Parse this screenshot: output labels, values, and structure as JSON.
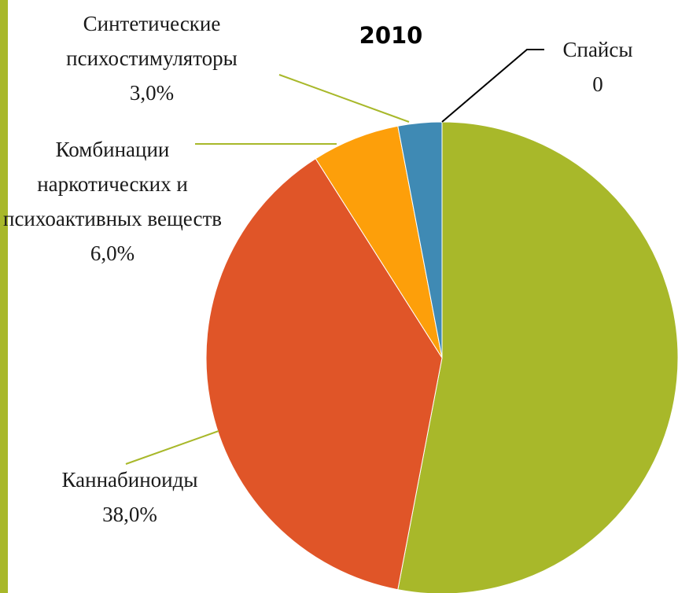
{
  "chart_data": {
    "type": "pie",
    "title": "2010",
    "categories": [
      null,
      "Каннабиноиды",
      "Комбинации наркотических и психоактивных веществ",
      "Синтетические психостимуляторы",
      "Спайсы"
    ],
    "values": [
      53,
      38,
      6,
      3,
      0
    ],
    "value_labels": [
      null,
      "38,0%",
      "6,0%",
      "3,0%",
      "0"
    ],
    "colors": [
      "#a8b82a",
      "#e05528",
      "#fd9f0a",
      "#3f8ab4",
      "#7f7f7f"
    ]
  }
}
